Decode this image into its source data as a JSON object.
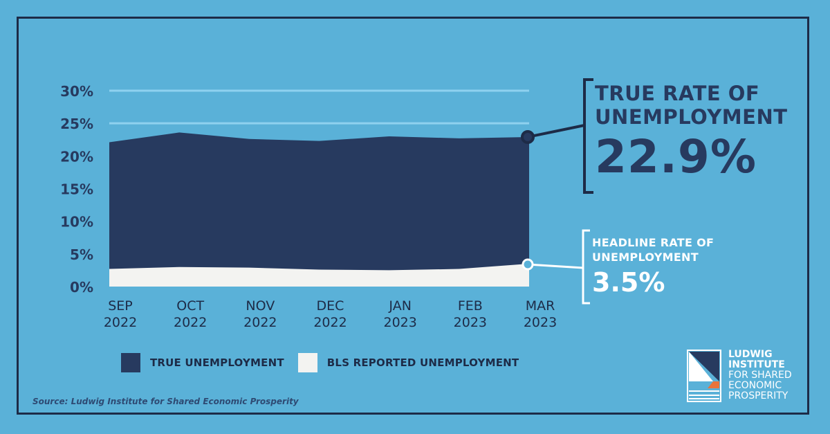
{
  "chart_data": {
    "type": "area",
    "categories": [
      "SEP 2022",
      "OCT 2022",
      "NOV 2022",
      "DEC 2022",
      "JAN 2023",
      "FEB 2023",
      "MAR 2023"
    ],
    "x_labels": [
      [
        "SEP",
        "2022"
      ],
      [
        "OCT",
        "2022"
      ],
      [
        "NOV",
        "2022"
      ],
      [
        "DEC",
        "2022"
      ],
      [
        "JAN",
        "2023"
      ],
      [
        "FEB",
        "2023"
      ],
      [
        "MAR",
        "2023"
      ]
    ],
    "series": [
      {
        "name": "TRUE UNEMPLOYMENT",
        "values": [
          22.1,
          23.6,
          22.6,
          22.3,
          23.0,
          22.7,
          22.9
        ],
        "color": "#273a5f"
      },
      {
        "name": "BLS REPORTED UNEMPLOYMENT",
        "values": [
          2.7,
          3.0,
          2.9,
          2.6,
          2.5,
          2.7,
          3.5
        ],
        "color": "#f3f3f1"
      }
    ],
    "ylim": [
      0,
      30
    ],
    "yticks": [
      0,
      5,
      10,
      15,
      20,
      25,
      30
    ],
    "ytick_labels": [
      "0%",
      "5%",
      "10%",
      "15%",
      "20%",
      "25%",
      "30%"
    ],
    "grid": true
  },
  "callouts": {
    "true_rate": {
      "line1": "TRUE RATE OF",
      "line2": "UNEMPLOYMENT",
      "value": "22.9%"
    },
    "headline_rate": {
      "line1": "HEADLINE RATE OF",
      "line2": "UNEMPLOYMENT",
      "value": "3.5%"
    }
  },
  "legend": {
    "items": [
      {
        "label": "TRUE UNEMPLOYMENT",
        "color": "#273a5f"
      },
      {
        "label": "BLS REPORTED UNEMPLOYMENT",
        "color": "#f3f3f1"
      }
    ]
  },
  "source": "Source: Ludwig Institute for Shared Economic Prosperity",
  "logo": {
    "line1": "LUDWIG",
    "line2": "INSTITUTE",
    "line3": "FOR SHARED",
    "line4": "ECONOMIC",
    "line5": "PROSPERITY"
  },
  "colors": {
    "background": "#5ab1d8",
    "navy": "#273a5f",
    "frame": "#1d2b47",
    "grid": "#8fd1ef",
    "white": "#f3f3f1",
    "orange": "#e8743b"
  }
}
